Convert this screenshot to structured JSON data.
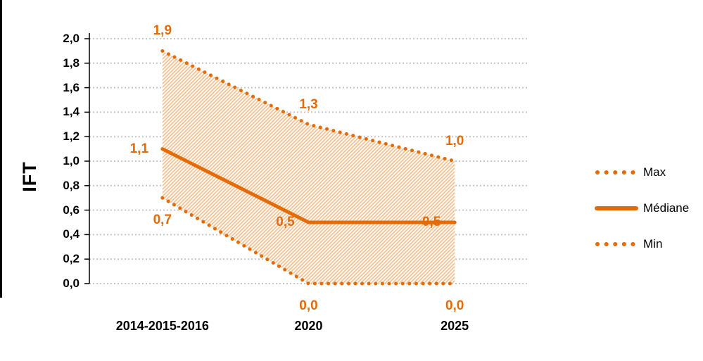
{
  "chart_data": {
    "type": "line",
    "categories": [
      "2014-2015-2016",
      "2020",
      "2025"
    ],
    "series": [
      {
        "name": "Max",
        "values": [
          1.9,
          1.3,
          1.0
        ],
        "labels": [
          "1,9",
          "1,3",
          "1,0"
        ],
        "style": "dotted",
        "label_position": "above"
      },
      {
        "name": "Médiane",
        "values": [
          1.1,
          0.5,
          0.5
        ],
        "labels": [
          "1,1",
          "0,5",
          "0,5"
        ],
        "style": "solid",
        "label_position": "left"
      },
      {
        "name": "Min",
        "values": [
          0.7,
          0.0,
          0.0
        ],
        "labels": [
          "0,7",
          "0,0",
          "0,0"
        ],
        "style": "dotted",
        "label_position": "below"
      }
    ],
    "band": {
      "upper": "Max",
      "lower": "Min",
      "fill": "hatched-diagonal"
    },
    "ylabel": "IFT",
    "ylim": [
      0,
      2
    ],
    "ytick_step": 0.2,
    "ytick_labels": [
      "2,0",
      "1,8",
      "1,6",
      "1,4",
      "1,2",
      "1,0",
      "0,8",
      "0,6",
      "0,4",
      "0,2",
      "0,0"
    ],
    "grid": "horizontal-dotted",
    "legend": {
      "position": "right",
      "entries": [
        "Max",
        "Médiane",
        "Min"
      ]
    },
    "colors": {
      "line": "#E36C09",
      "data_label": "#E36C09",
      "hatch": "#FAC090",
      "gridline": "#C6C6C6",
      "axis": "#000000",
      "text": "#000000"
    }
  }
}
